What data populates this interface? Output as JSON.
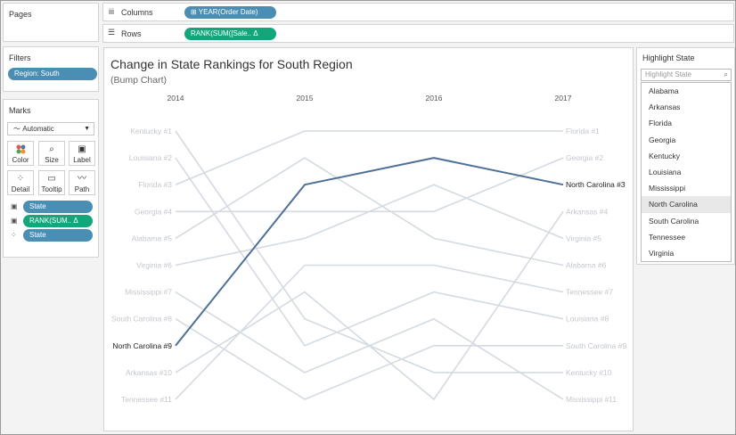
{
  "pages": {
    "title": "Pages"
  },
  "columns": {
    "label": "Columns",
    "pill": "⊞ YEAR(Order Date)"
  },
  "rows": {
    "label": "Rows",
    "pill": "RANK(SUM([Sale..  Δ"
  },
  "filters": {
    "title": "Filters",
    "pill": "Region: South"
  },
  "marks": {
    "title": "Marks",
    "type": "Automatic",
    "buttons": {
      "color": "Color",
      "size": "Size",
      "label": "Label",
      "detail": "Detail",
      "tooltip": "Tooltip",
      "path": "Path"
    },
    "pills": {
      "state1": "State",
      "rank": "RANK(SUM..  Δ",
      "state2": "State"
    }
  },
  "highlight": {
    "title": "Highlight State",
    "placeholder": "Highlight State",
    "items": [
      "Alabama",
      "Arkansas",
      "Florida",
      "Georgia",
      "Kentucky",
      "Louisiana",
      "Mississippi",
      "North Carolina",
      "South Carolina",
      "Tennessee",
      "Virginia"
    ],
    "selected": "North Carolina"
  },
  "colors": {
    "highlight": "#4e6f97",
    "muted": "#d4dae2",
    "pill_blue": "#4b8eb3",
    "pill_green": "#13a57c"
  },
  "chart_data": {
    "type": "line",
    "title": "Change in State Rankings for South Region",
    "subtitle": "(Bump Chart)",
    "x": [
      "2014",
      "2015",
      "2016",
      "2017"
    ],
    "ylim": [
      1,
      11
    ],
    "y_reversed": true,
    "highlighted_series": "North Carolina",
    "series": [
      {
        "name": "Kentucky",
        "values": [
          1,
          8,
          10,
          10
        ]
      },
      {
        "name": "Louisiana",
        "values": [
          2,
          9,
          7,
          8
        ]
      },
      {
        "name": "Florida",
        "values": [
          3,
          1,
          1,
          1
        ]
      },
      {
        "name": "Georgia",
        "values": [
          4,
          4,
          4,
          2
        ]
      },
      {
        "name": "Alabama",
        "values": [
          5,
          2,
          5,
          6
        ]
      },
      {
        "name": "Virginia",
        "values": [
          6,
          5,
          3,
          5
        ]
      },
      {
        "name": "Mississippi",
        "values": [
          7,
          10,
          8,
          11
        ]
      },
      {
        "name": "South Carolina",
        "values": [
          8,
          11,
          9,
          9
        ]
      },
      {
        "name": "North Carolina",
        "values": [
          9,
          3,
          2,
          3
        ]
      },
      {
        "name": "Arkansas",
        "values": [
          10,
          7,
          11,
          4
        ]
      },
      {
        "name": "Tennessee",
        "values": [
          11,
          6,
          6,
          7
        ]
      }
    ],
    "left_labels": [
      "Kentucky #1",
      "Louisiana #2",
      "Florida #3",
      "Georgia #4",
      "Alabama #5",
      "Virginia #6",
      "Mississippi #7",
      "South Carolina #8",
      "North Carolina #9",
      "Arkansas #10",
      "Tennessee #11"
    ],
    "right_labels": [
      "Florida #1",
      "Georgia #2",
      "North Carolina #3",
      "Arkansas #4",
      "Virginia #5",
      "Alabama #6",
      "Tennessee #7",
      "Louisiana #8",
      "South Carolina #9",
      "Kentucky #10",
      "Mississippi #11"
    ]
  }
}
